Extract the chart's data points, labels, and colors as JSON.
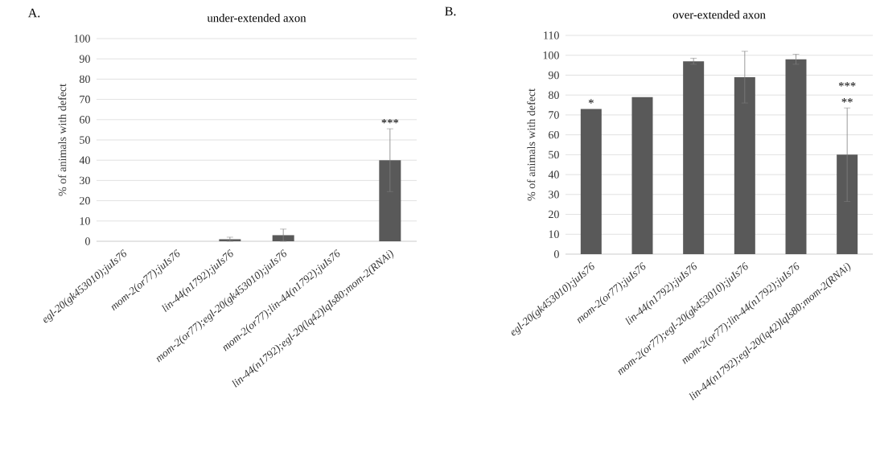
{
  "chart_data": [
    {
      "type": "bar",
      "title": "under-extended axon",
      "ylabel": "% of animals with defect",
      "categories": [
        "egl-20(gk453010);juIs76",
        "mom-2(or77);juIs76",
        "lin-44(n1792);juIs76",
        "mom-2(or77);egl-20(gk453010);juIs76",
        "mom-2(or77);lin-44(n1792);juIs76",
        "lin-44(n1792);egl-20(lq42)lqIs80;mom-2(RNAi)"
      ],
      "values": [
        0,
        0,
        1,
        3,
        0,
        40
      ],
      "errors": [
        null,
        null,
        1,
        3,
        null,
        15.5
      ],
      "color": "#595959",
      "ylim": [
        0,
        100
      ],
      "yticks": [
        0,
        10,
        20,
        30,
        40,
        50,
        60,
        70,
        80,
        90,
        100
      ],
      "grid": "y",
      "annotations": [
        "A.",
        {
          "text": "***",
          "x": "lin-44(n1792);egl-20(lq42)lqIs80;mom-2(RNAi)",
          "y": 55.5
        }
      ]
    },
    {
      "type": "bar",
      "title": "over-extended axon",
      "ylabel": "% of animals with defect",
      "categories": [
        "egl-20(gk453010);juIs76",
        "mom-2(or77);juIs76",
        "lin-44(n1792);juIs76",
        "mom-2(or77);egl-20(gk453010);juIs76",
        "mom-2(or77);lin-44(n1792);juIs76",
        "lin-44(n1792);egl-20(lq42)lqIs80;mom-2(RNAi)"
      ],
      "values": [
        73,
        79,
        97,
        89,
        98,
        50
      ],
      "errors": [
        null,
        null,
        1.5,
        13,
        2.5,
        23.5
      ],
      "color": "#595959",
      "ylim": [
        0,
        110
      ],
      "yticks": [
        0,
        10,
        20,
        30,
        40,
        50,
        60,
        70,
        80,
        90,
        100,
        110
      ],
      "grid": "y",
      "annotations": [
        "B.",
        {
          "text": "*",
          "x": "egl-20(gk453010);juIs76",
          "y": 73
        },
        {
          "text": "**",
          "x": "lin-44(n1792);egl-20(lq42)lqIs80;mom-2(RNAi)",
          "y": 73.5
        },
        {
          "text": "***",
          "x": "lin-44(n1792);egl-20(lq42)lqIs80;mom-2(RNAi)",
          "y": 73.5
        }
      ]
    }
  ]
}
